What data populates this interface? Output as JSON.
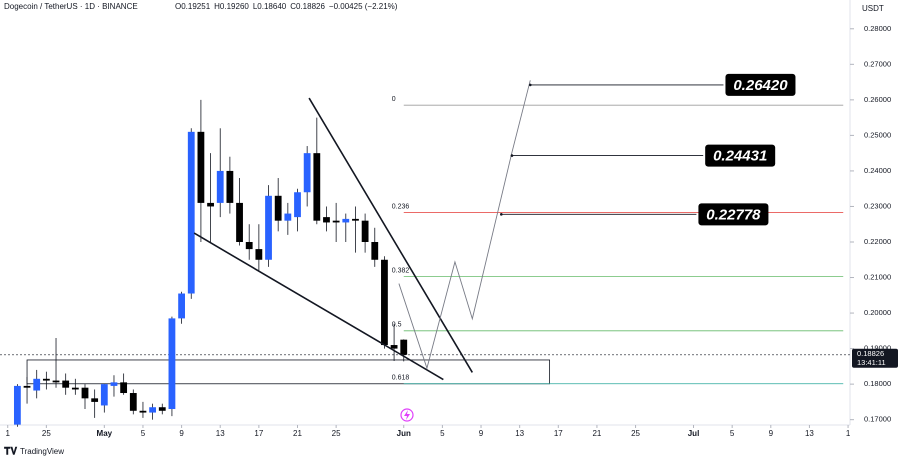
{
  "chart_data": {
    "type": "candlestick",
    "title": "Dogecoin / TetherUS · 1D · BINANCE",
    "ohlc_labels": [
      "O0.19251",
      "H0.19260",
      "L0.18640",
      "C0.18826",
      "−0.00425 (−2.21%)"
    ],
    "axis_unit": "USDT",
    "x": [
      1,
      2,
      3,
      4,
      5,
      6,
      7,
      8,
      9,
      10,
      11,
      12,
      13,
      14,
      15,
      16,
      17,
      18,
      19,
      20,
      21,
      22,
      23,
      24,
      25,
      26,
      27,
      28,
      29,
      30,
      31,
      32,
      33,
      34,
      35,
      36,
      37,
      38,
      39,
      40,
      41
    ],
    "open": [
      0.1686,
      0.1795,
      0.1782,
      0.1815,
      0.181,
      0.181,
      0.179,
      0.179,
      0.176,
      0.174,
      0.1795,
      0.1805,
      0.1775,
      0.1725,
      0.172,
      0.1735,
      0.173,
      0.1985,
      0.2055,
      0.251,
      0.231,
      0.231,
      0.24,
      0.231,
      0.22,
      0.218,
      0.215,
      0.233,
      0.226,
      0.227,
      0.234,
      0.245,
      0.227,
      0.226,
      0.2255,
      0.2265,
      0.226,
      0.22,
      0.215,
      0.191,
      0.19251
    ],
    "high": [
      0.18,
      0.182,
      0.184,
      0.1835,
      0.193,
      0.183,
      0.1815,
      0.18,
      0.1785,
      0.18,
      0.1825,
      0.183,
      0.1785,
      0.175,
      0.1745,
      0.1745,
      0.199,
      0.206,
      0.252,
      0.26,
      0.245,
      0.252,
      0.244,
      0.238,
      0.225,
      0.225,
      0.236,
      0.238,
      0.231,
      0.235,
      0.247,
      0.255,
      0.23,
      0.231,
      0.228,
      0.23,
      0.228,
      0.224,
      0.216,
      0.197,
      0.1926
    ],
    "low": [
      0.168,
      0.1745,
      0.176,
      0.1785,
      0.179,
      0.177,
      0.177,
      0.173,
      0.1705,
      0.172,
      0.1765,
      0.177,
      0.1715,
      0.1705,
      0.17,
      0.1715,
      0.171,
      0.197,
      0.204,
      0.22,
      0.22,
      0.227,
      0.228,
      0.219,
      0.215,
      0.212,
      0.213,
      0.223,
      0.222,
      0.223,
      0.23,
      0.225,
      0.223,
      0.22,
      0.22,
      0.217,
      0.217,
      0.213,
      0.19,
      0.1865,
      0.1864
    ],
    "close": [
      0.1795,
      0.179,
      0.1815,
      0.181,
      0.1805,
      0.179,
      0.1785,
      0.176,
      0.175,
      0.18,
      0.1805,
      0.1775,
      0.1725,
      0.172,
      0.1735,
      0.1725,
      0.1985,
      0.2055,
      0.251,
      0.231,
      0.23,
      0.24,
      0.231,
      0.22,
      0.218,
      0.215,
      0.233,
      0.226,
      0.228,
      0.234,
      0.245,
      0.226,
      0.2255,
      0.2255,
      0.2265,
      0.226,
      0.22,
      0.215,
      0.191,
      0.19,
      0.18826
    ],
    "up_color": "#2962ff",
    "down_color": "#000000",
    "xlim": [
      -0.8,
      87.2
    ],
    "xticks": [
      {
        "value": 0,
        "label": "1"
      },
      {
        "value": 4,
        "label": "25"
      },
      {
        "value": 10,
        "label": "May"
      },
      {
        "value": 14,
        "label": "5"
      },
      {
        "value": 18,
        "label": "9"
      },
      {
        "value": 22,
        "label": "13"
      },
      {
        "value": 26,
        "label": "17"
      },
      {
        "value": 30,
        "label": "21"
      },
      {
        "value": 34,
        "label": "25"
      },
      {
        "value": 41,
        "label": "Jun"
      },
      {
        "value": 45,
        "label": "5"
      },
      {
        "value": 49,
        "label": "9"
      },
      {
        "value": 53,
        "label": "13"
      },
      {
        "value": 57,
        "label": "17"
      },
      {
        "value": 61,
        "label": "21"
      },
      {
        "value": 65,
        "label": "25"
      },
      {
        "value": 71,
        "label": "Jul"
      },
      {
        "value": 75,
        "label": "5"
      },
      {
        "value": 79,
        "label": "9"
      },
      {
        "value": 83,
        "label": "13"
      },
      {
        "value": 87,
        "label": "1"
      }
    ],
    "ylim": [
      0.1685,
      0.2881
    ],
    "yticks": [
      {
        "value": 0.17,
        "label": "0.17000"
      },
      {
        "value": 0.18,
        "label": "0.18000"
      },
      {
        "value": 0.19,
        "label": "0.19000"
      },
      {
        "value": 0.2,
        "label": "0.20000"
      },
      {
        "value": 0.21,
        "label": "0.21000"
      },
      {
        "value": 0.22,
        "label": "0.22000"
      },
      {
        "value": 0.23,
        "label": "0.23000"
      },
      {
        "value": 0.24,
        "label": "0.24000"
      },
      {
        "value": 0.25,
        "label": "0.25000"
      },
      {
        "value": 0.26,
        "label": "0.26000"
      },
      {
        "value": 0.27,
        "label": "0.27000"
      },
      {
        "value": 0.28,
        "label": "0.28000"
      }
    ],
    "last_price": 0.18826,
    "countdown": "13:41:11",
    "fib": {
      "ratios": [
        0,
        0.236,
        0.382,
        0.5,
        0.618
      ],
      "values": [
        0.2585,
        0.2283,
        0.2103,
        0.195,
        0.1801
      ],
      "colors": [
        "#9e9e9e",
        "#e53935",
        "#66bb6a",
        "#66bb6a",
        "#26a69a"
      ],
      "x_start": 41.0,
      "x_end": 86.5
    },
    "trendlines": [
      {
        "x": [
          31.2,
          48.1
        ],
        "values": [
          0.2605,
          0.1833
        ]
      },
      {
        "x": [
          19.3,
          45.1
        ],
        "values": [
          0.2225,
          0.1813
        ]
      }
    ],
    "support_box": {
      "x": [
        2.0,
        56.1
      ],
      "values": [
        0.1868,
        0.1801
      ]
    },
    "projection": {
      "x": [
        40.5,
        43.4,
        46.3,
        48.1,
        52.2,
        54.1
      ],
      "values": [
        0.2083,
        0.1845,
        0.2144,
        0.1984,
        0.2452,
        0.2655
      ]
    },
    "targets": {
      "values": [
        0.2642,
        0.24431,
        0.22778
      ],
      "value_labels": [
        "0.26420",
        "0.24431",
        "0.22778"
      ],
      "x_start": [
        54.1,
        52.2,
        51.1
      ],
      "x_end": [
        74.1,
        72.0,
        71.3
      ]
    },
    "brand": "TradingView"
  }
}
